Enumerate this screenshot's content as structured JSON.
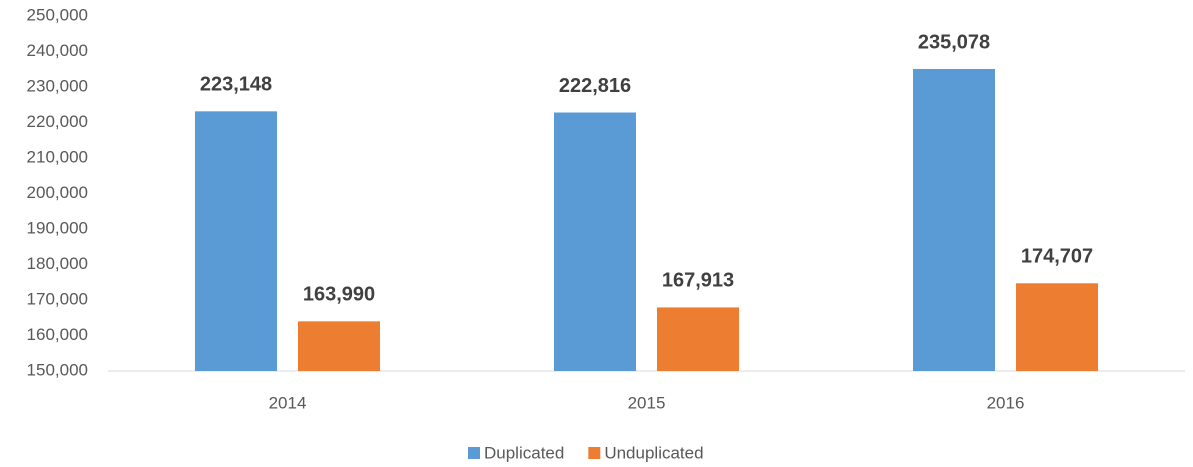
{
  "chart_data": {
    "type": "bar",
    "categories": [
      "2014",
      "2015",
      "2016"
    ],
    "series": [
      {
        "name": "Duplicated",
        "color": "#5b9bd5",
        "values": [
          223148,
          222816,
          235078
        ],
        "value_labels": [
          "223,148",
          "222,816",
          "235,078"
        ]
      },
      {
        "name": "Unduplicated",
        "color": "#ed7d31",
        "values": [
          163990,
          167913,
          174707
        ],
        "value_labels": [
          "163,990",
          "167,913",
          "174,707"
        ]
      }
    ],
    "ylim": [
      150000,
      250000
    ],
    "yticks": [
      {
        "value": 150000,
        "label": "150,000"
      },
      {
        "value": 160000,
        "label": "160,000"
      },
      {
        "value": 170000,
        "label": "170,000"
      },
      {
        "value": 180000,
        "label": "180,000"
      },
      {
        "value": 190000,
        "label": "190,000"
      },
      {
        "value": 200000,
        "label": "200,000"
      },
      {
        "value": 210000,
        "label": "210,000"
      },
      {
        "value": 220000,
        "label": "220,000"
      },
      {
        "value": 230000,
        "label": "230,000"
      },
      {
        "value": 240000,
        "label": "240,000"
      },
      {
        "value": 250000,
        "label": "250,000"
      }
    ],
    "grid": false,
    "legend": "bottom"
  }
}
